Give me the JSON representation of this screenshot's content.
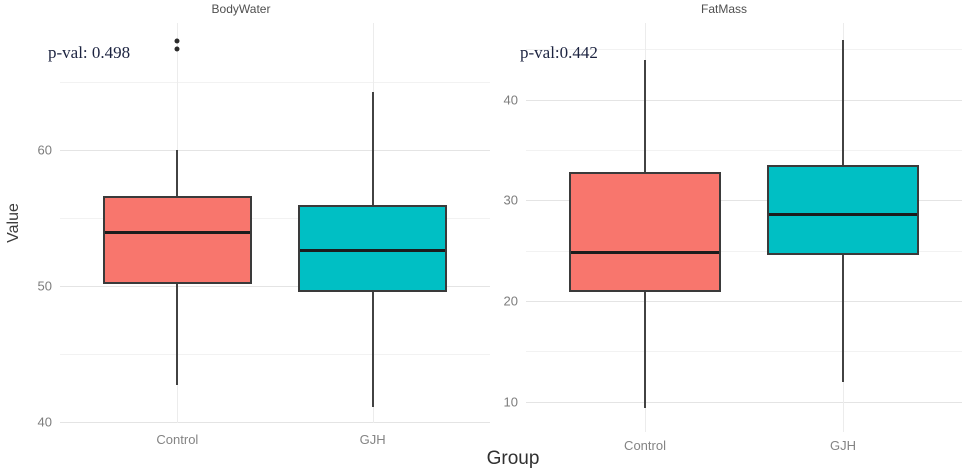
{
  "figure": {
    "xlabel": "Group",
    "background": "#ffffff"
  },
  "colors": {
    "control_fill": "#F8766D",
    "gjh_fill": "#00BFC4",
    "box_border": "#3a3a3a",
    "median_line": "#1c1c1c",
    "whisker": "#424242",
    "grid_major": "#e4e4e4",
    "grid_minor": "#f2f2f2",
    "grid_vertical": "#ececec",
    "tick_label": "#7d7d7d",
    "panel_title": "#4f4f4f",
    "pval_text": "#1c2340",
    "outlier": "#2b2b2b"
  },
  "chart_data": [
    {
      "type": "boxplot",
      "title": "BodyWater",
      "annotation": "p-val: 0.498",
      "ylabel": "Value",
      "xlabel": "Group",
      "ylim": [
        39.9,
        69.3
      ],
      "yticks": [
        40,
        50,
        60
      ],
      "yticks_minor": [
        45,
        55,
        65
      ],
      "grid": true,
      "categories": [
        "Control",
        "GJH"
      ],
      "series": [
        {
          "group": "Control",
          "color": "#F8766D",
          "whisker_low": 42.7,
          "q1": 50.1,
          "median": 53.9,
          "q3": 56.6,
          "whisker_high": 60.0,
          "outliers": [
            67.4,
            68.0
          ]
        },
        {
          "group": "GJH",
          "color": "#00BFC4",
          "whisker_low": 41.1,
          "q1": 49.5,
          "median": 52.6,
          "q3": 55.9,
          "whisker_high": 64.2,
          "outliers": []
        }
      ]
    },
    {
      "type": "boxplot",
      "title": "FatMass",
      "annotation": "p-val:0.442",
      "ylabel": "",
      "xlabel": "Group",
      "ylim": [
        7.0,
        47.6
      ],
      "yticks": [
        10,
        20,
        30,
        40
      ],
      "yticks_minor": [
        15,
        25,
        35,
        45
      ],
      "grid": true,
      "categories": [
        "Control",
        "GJH"
      ],
      "series": [
        {
          "group": "Control",
          "color": "#F8766D",
          "whisker_low": 9.4,
          "q1": 20.9,
          "median": 24.8,
          "q3": 32.8,
          "whisker_high": 43.9,
          "outliers": []
        },
        {
          "group": "GJH",
          "color": "#00BFC4",
          "whisker_low": 12.0,
          "q1": 24.6,
          "median": 28.6,
          "q3": 33.5,
          "whisker_high": 45.9,
          "outliers": []
        }
      ]
    }
  ]
}
